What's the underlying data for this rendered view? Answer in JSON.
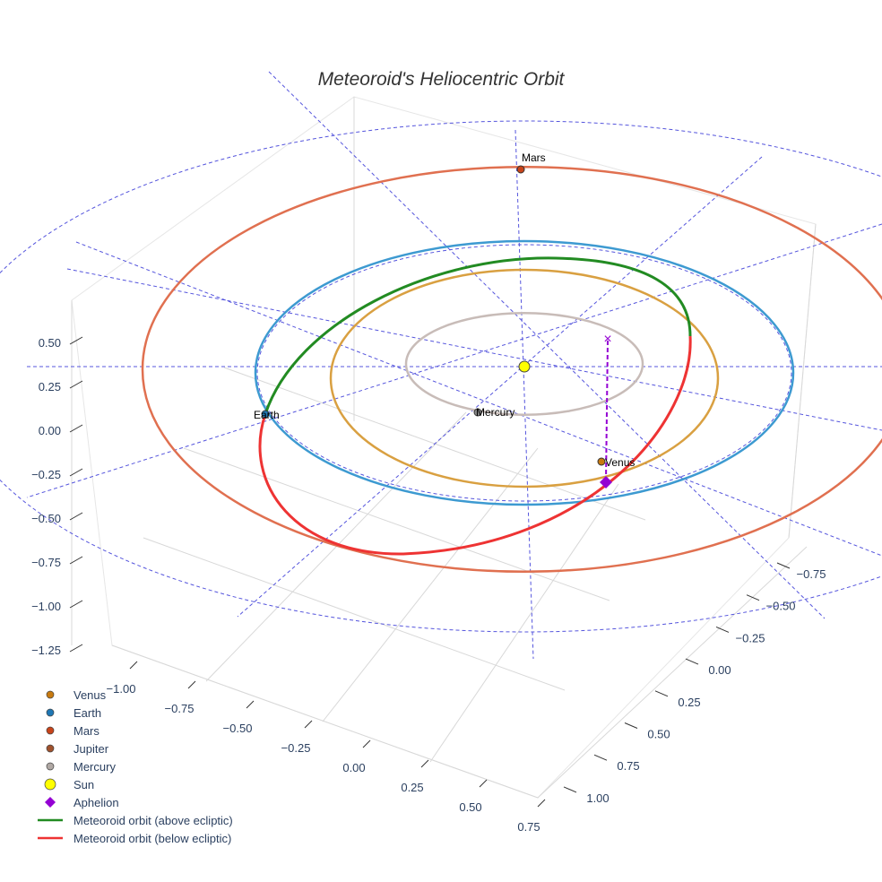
{
  "chart_data": {
    "type": "scatter3d",
    "title": "Meteoroid's Heliocentric Orbit",
    "x_ticks": [
      "−1.00",
      "−0.75",
      "−0.50",
      "−0.25",
      "0.00",
      "0.25",
      "0.50",
      "0.75"
    ],
    "y_ticks": [
      "−0.75",
      "−0.50",
      "−0.25",
      "0.00",
      "0.25",
      "0.50",
      "0.75",
      "1.00"
    ],
    "z_ticks": [
      "0.50",
      "0.25",
      "0.00",
      "−0.25",
      "−0.50",
      "−0.75",
      "−1.00",
      "−1.25"
    ],
    "orbits": [
      {
        "name": "Mercury",
        "radius_au": 0.44,
        "color": "#c8bcb8"
      },
      {
        "name": "Venus",
        "radius_au": 0.72,
        "color": "#d9a041"
      },
      {
        "name": "Earth",
        "radius_au": 1.0,
        "color": "#3d9ad1"
      },
      {
        "name": "Mars",
        "radius_au": 1.42,
        "color": "#e07050"
      }
    ],
    "planet_labels": [
      {
        "name": "Mars",
        "color": "#c8441a"
      },
      {
        "name": "Earth",
        "color": "#1f77b4"
      },
      {
        "name": "Mercury",
        "color": "#888"
      },
      {
        "name": "Venus",
        "color": "#c87a10"
      }
    ],
    "legend": [
      {
        "label": "Venus",
        "symbol": "circle",
        "color": "#c87a10"
      },
      {
        "label": "Earth",
        "symbol": "circle",
        "color": "#1f77b4"
      },
      {
        "label": "Mars",
        "symbol": "circle",
        "color": "#c8441a"
      },
      {
        "label": "Jupiter",
        "symbol": "circle",
        "color": "#a0522d"
      },
      {
        "label": "Mercury",
        "symbol": "circle",
        "color": "#b0a8a4"
      },
      {
        "label": "Sun",
        "symbol": "circle-large",
        "color": "#ffff00"
      },
      {
        "label": "Aphelion",
        "symbol": "diamond",
        "color": "#9400d3"
      },
      {
        "label": "Meteoroid orbit (above ecliptic)",
        "symbol": "line",
        "color": "#228b22"
      },
      {
        "label": "Meteoroid orbit (below ecliptic)",
        "symbol": "line",
        "color": "#ee3333"
      }
    ],
    "legend_position": "bottom-left"
  }
}
